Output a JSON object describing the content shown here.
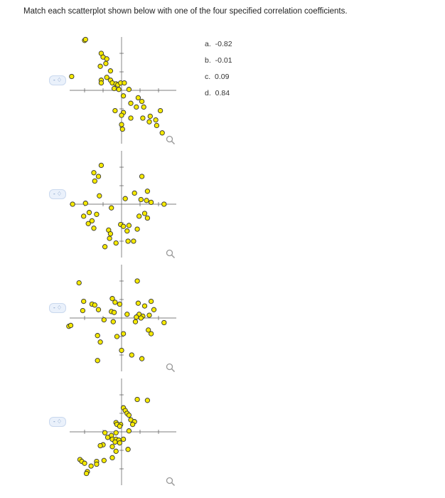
{
  "instruction": "Match each scatterplot shown below with one of the four specified correlation coefficients.",
  "options": [
    {
      "letter": "a.",
      "value": "-0.82"
    },
    {
      "letter": "b.",
      "value": "-0.01"
    },
    {
      "letter": "c.",
      "value": "0.09"
    },
    {
      "letter": "d.",
      "value": "0.84"
    }
  ],
  "dropdown": {
    "label": "- ♢"
  },
  "icons": {
    "dropdown": "chevron-updown-icon",
    "zoom": "magnifier-icon"
  },
  "colors": {
    "point_fill": "#f5e900",
    "point_stroke": "#333333",
    "axis": "#555555",
    "dropdown_bg": "#eaf1fb"
  },
  "chart_data": [
    {
      "type": "scatter",
      "points": [
        [
          -2.0,
          2.7
        ],
        [
          -1.95,
          2.75
        ],
        [
          -1.1,
          2.0
        ],
        [
          -1.0,
          1.8
        ],
        [
          -0.8,
          1.7
        ],
        [
          -0.85,
          1.45
        ],
        [
          -1.15,
          1.3
        ],
        [
          -0.6,
          1.05
        ],
        [
          -0.8,
          0.7
        ],
        [
          -1.1,
          0.55
        ],
        [
          -0.6,
          0.55
        ],
        [
          -1.1,
          0.4
        ],
        [
          -0.5,
          0.4
        ],
        [
          -0.3,
          0.35
        ],
        [
          -0.2,
          0.3
        ],
        [
          -0.05,
          0.4
        ],
        [
          0.15,
          0.4
        ],
        [
          -0.4,
          0.1
        ],
        [
          -0.15,
          0.05
        ],
        [
          0.4,
          0.05
        ],
        [
          -2.7,
          0.75
        ],
        [
          0.1,
          -0.3
        ],
        [
          0.9,
          -0.4
        ],
        [
          1.1,
          -0.6
        ],
        [
          0.5,
          -0.7
        ],
        [
          0.8,
          -0.9
        ],
        [
          1.2,
          -0.9
        ],
        [
          -0.35,
          -1.1
        ],
        [
          0.1,
          -1.2
        ],
        [
          0.0,
          -1.35
        ],
        [
          0.5,
          -1.5
        ],
        [
          1.15,
          -1.5
        ],
        [
          1.55,
          -1.4
        ],
        [
          2.1,
          -1.1
        ],
        [
          1.5,
          -1.7
        ],
        [
          1.85,
          -1.6
        ],
        [
          1.9,
          -1.9
        ],
        [
          0.0,
          -1.85
        ],
        [
          0.05,
          -2.1
        ],
        [
          2.2,
          -2.3
        ]
      ]
    },
    {
      "type": "scatter",
      "points": [
        [
          -1.1,
          2.1
        ],
        [
          -1.5,
          1.7
        ],
        [
          -1.25,
          1.5
        ],
        [
          -1.45,
          1.25
        ],
        [
          1.1,
          1.5
        ],
        [
          -1.2,
          0.45
        ],
        [
          -2.65,
          0.0
        ],
        [
          -1.95,
          0.05
        ],
        [
          -0.55,
          -0.2
        ],
        [
          -1.75,
          -0.45
        ],
        [
          -1.35,
          -0.55
        ],
        [
          -2.05,
          -0.65
        ],
        [
          -1.6,
          -0.9
        ],
        [
          -1.8,
          -1.05
        ],
        [
          -1.5,
          -1.3
        ],
        [
          0.2,
          0.3
        ],
        [
          0.7,
          0.6
        ],
        [
          1.4,
          0.7
        ],
        [
          1.05,
          0.25
        ],
        [
          1.35,
          0.2
        ],
        [
          1.6,
          0.1
        ],
        [
          0.95,
          -0.65
        ],
        [
          1.25,
          -0.5
        ],
        [
          1.4,
          -0.75
        ],
        [
          2.3,
          0.0
        ],
        [
          -0.05,
          -1.1
        ],
        [
          0.1,
          -1.2
        ],
        [
          0.4,
          -1.15
        ],
        [
          -0.7,
          -1.4
        ],
        [
          -0.6,
          -1.6
        ],
        [
          0.3,
          -1.45
        ],
        [
          0.85,
          -1.35
        ],
        [
          -0.65,
          -1.85
        ],
        [
          -0.3,
          -2.1
        ],
        [
          -0.9,
          -2.3
        ],
        [
          0.35,
          -2.0
        ],
        [
          0.65,
          -2.0
        ]
      ]
    },
    {
      "type": "scatter",
      "points": [
        [
          -2.3,
          1.9
        ],
        [
          -2.05,
          0.9
        ],
        [
          -1.6,
          0.75
        ],
        [
          -1.45,
          0.7
        ],
        [
          -2.1,
          0.4
        ],
        [
          -1.25,
          0.45
        ],
        [
          -0.5,
          1.05
        ],
        [
          -0.35,
          0.85
        ],
        [
          -0.55,
          0.35
        ],
        [
          -0.4,
          0.3
        ],
        [
          -0.1,
          0.75
        ],
        [
          0.3,
          0.2
        ],
        [
          0.85,
          2.0
        ],
        [
          0.9,
          0.8
        ],
        [
          1.25,
          0.65
        ],
        [
          1.6,
          0.9
        ],
        [
          1.75,
          0.45
        ],
        [
          0.95,
          0.2
        ],
        [
          1.15,
          0.1
        ],
        [
          0.8,
          0.05
        ],
        [
          1.05,
          0.0
        ],
        [
          1.5,
          0.15
        ],
        [
          0.75,
          -0.2
        ],
        [
          2.3,
          -0.25
        ],
        [
          -2.85,
          -0.45
        ],
        [
          -2.75,
          -0.4
        ],
        [
          -0.95,
          -0.1
        ],
        [
          -0.45,
          -0.2
        ],
        [
          0.1,
          -0.85
        ],
        [
          -0.25,
          -1.0
        ],
        [
          1.6,
          -0.85
        ],
        [
          1.45,
          -0.65
        ],
        [
          -1.3,
          -0.95
        ],
        [
          -1.15,
          -1.3
        ],
        [
          0.0,
          -1.75
        ],
        [
          0.55,
          -2.0
        ],
        [
          1.1,
          -2.2
        ],
        [
          -1.3,
          -2.3
        ]
      ]
    },
    {
      "type": "scatter",
      "points": [
        [
          0.85,
          1.75
        ],
        [
          1.4,
          1.7
        ],
        [
          0.1,
          1.3
        ],
        [
          0.2,
          1.15
        ],
        [
          0.3,
          1.0
        ],
        [
          0.4,
          0.9
        ],
        [
          0.5,
          0.65
        ],
        [
          0.7,
          0.55
        ],
        [
          0.6,
          0.4
        ],
        [
          -0.05,
          0.4
        ],
        [
          -0.3,
          0.5
        ],
        [
          -0.25,
          0.4
        ],
        [
          -0.1,
          0.3
        ],
        [
          0.4,
          0.05
        ],
        [
          -0.9,
          -0.05
        ],
        [
          -0.3,
          -0.05
        ],
        [
          -0.55,
          -0.2
        ],
        [
          -0.75,
          -0.3
        ],
        [
          -0.5,
          -0.4
        ],
        [
          -0.3,
          -0.4
        ],
        [
          -0.15,
          -0.45
        ],
        [
          0.1,
          -0.4
        ],
        [
          -0.35,
          -0.55
        ],
        [
          -0.1,
          -0.6
        ],
        [
          -1.0,
          -0.7
        ],
        [
          -1.15,
          -0.75
        ],
        [
          -0.5,
          -0.8
        ],
        [
          0.35,
          -0.95
        ],
        [
          -0.3,
          -1.05
        ],
        [
          -0.5,
          -1.4
        ],
        [
          -0.95,
          -1.55
        ],
        [
          -1.35,
          -1.6
        ],
        [
          -2.25,
          -1.5
        ],
        [
          -2.15,
          -1.6
        ],
        [
          -2.0,
          -1.7
        ],
        [
          -1.65,
          -1.85
        ],
        [
          -1.35,
          -1.75
        ],
        [
          -1.85,
          -2.15
        ],
        [
          -1.9,
          -2.25
        ]
      ]
    }
  ]
}
